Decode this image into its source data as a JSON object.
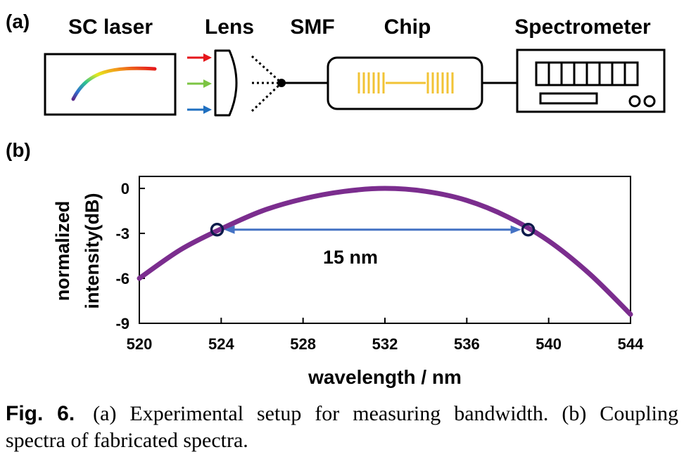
{
  "panel_a": {
    "panel_label": "(a)",
    "labels": {
      "laser": "SC laser",
      "lens": "Lens",
      "fiber": "SMF",
      "chip": "Chip",
      "spectrometer": "Spectrometer"
    }
  },
  "panel_b": {
    "panel_label": "(b)",
    "annotation": "15 nm"
  },
  "colors": {
    "curve": "#7B2D8E",
    "arrow": "#4472C4",
    "marker": "#0D1B4B",
    "grating": "#F2C335",
    "red_beam": "#E5161B",
    "green_beam": "#7CC443",
    "blue_beam": "#1F6FC0"
  },
  "chart_data": {
    "type": "line",
    "title": "",
    "xlabel": "wavelength / nm",
    "ylabel_lines": [
      "normalized",
      "intensity(dB)"
    ],
    "xlim": [
      520,
      544
    ],
    "ylim": [
      -9,
      0.8
    ],
    "xticks": [
      520,
      524,
      528,
      532,
      536,
      540,
      544
    ],
    "yticks": [
      0,
      -3,
      -6,
      -9
    ],
    "series": [
      {
        "x": [
          520,
          522,
          524,
          526,
          528,
          530,
          532,
          534,
          536,
          538,
          540,
          542,
          544
        ],
        "y": [
          -6.0,
          -4.1,
          -2.7,
          -1.5,
          -0.7,
          -0.2,
          0.0,
          -0.2,
          -0.8,
          -1.9,
          -3.5,
          -5.7,
          -8.4
        ]
      }
    ],
    "markers": [
      {
        "x": 523.8,
        "y": -2.75
      },
      {
        "x": 539.0,
        "y": -2.75
      }
    ],
    "annotation": {
      "text": "15 nm",
      "x_start": 523.8,
      "x_end": 539.0,
      "y": -2.75
    }
  },
  "caption": {
    "label": "Fig. 6.",
    "text": "(a) Experimental setup for measuring bandwidth. (b) Coupling spectra of fabricated spectra."
  }
}
